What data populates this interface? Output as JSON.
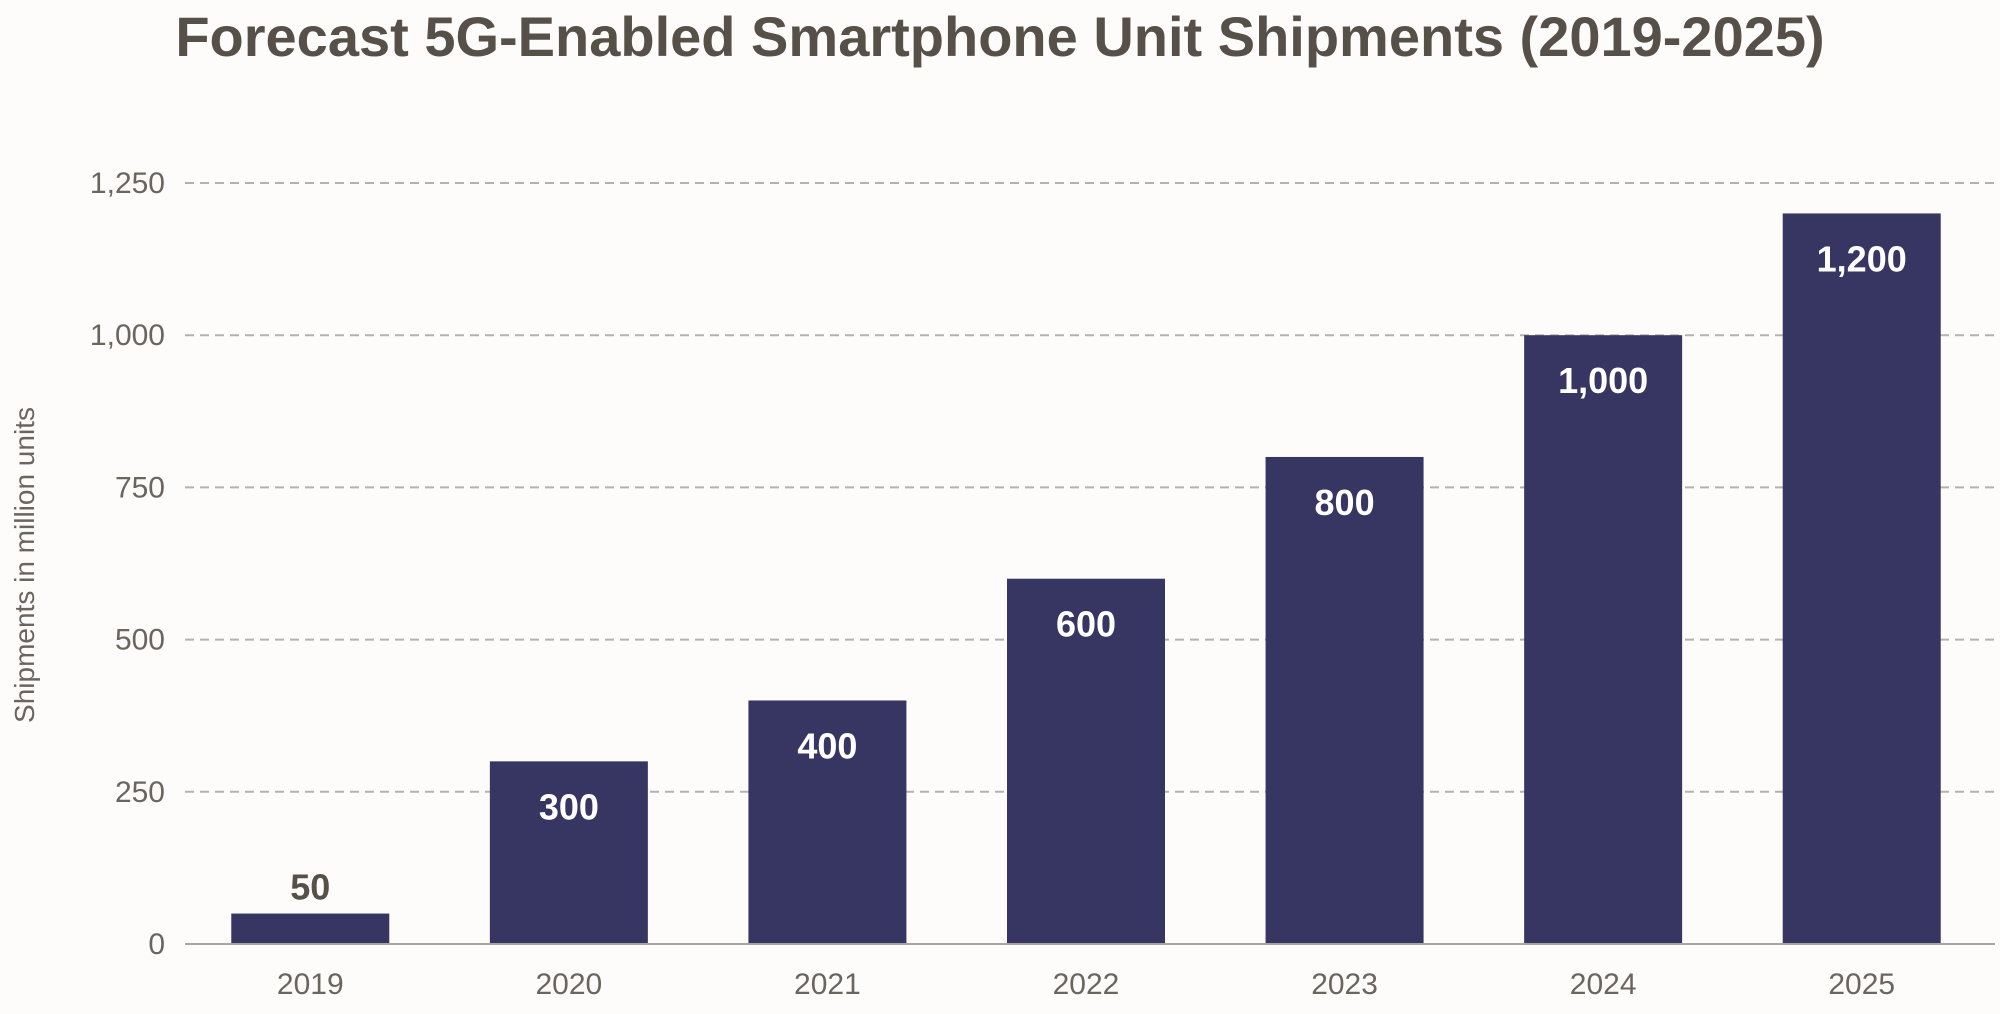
{
  "chart_data": {
    "type": "bar",
    "title": "Forecast 5G-Enabled Smartphone Unit Shipments (2019-2025)",
    "xlabel": "",
    "ylabel": "Shipments in million units",
    "categories": [
      "2019",
      "2020",
      "2021",
      "2022",
      "2023",
      "2024",
      "2025"
    ],
    "values": [
      50,
      300,
      400,
      600,
      800,
      1000,
      1200
    ],
    "value_labels": [
      "50",
      "300",
      "400",
      "600",
      "800",
      "1,000",
      "1,200"
    ],
    "ylim": [
      0,
      1250
    ],
    "yticks": [
      0,
      250,
      500,
      750,
      1000,
      1250
    ],
    "ytick_labels": [
      "0",
      "250",
      "500",
      "750",
      "1,000",
      "1,250"
    ],
    "grid": true,
    "legend": "none",
    "colors": {
      "bar": "#373561",
      "grid": "#b5b2ae",
      "axis": "#a8a5a2",
      "tick_text": "#6b6560",
      "label_inside": "#ffffff",
      "label_outside": "#565048"
    }
  }
}
